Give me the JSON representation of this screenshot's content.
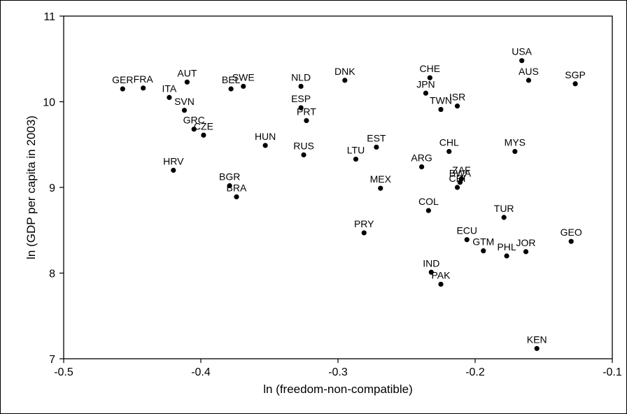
{
  "chart_data": {
    "type": "scatter",
    "xlabel": "ln (freedom-non-compatible)",
    "ylabel": "ln (GDP per capita in 2003)",
    "xlim": [
      -0.5,
      -0.1
    ],
    "ylim": [
      7,
      11
    ],
    "xticks": [
      "-0.5",
      "-0.4",
      "-0.3",
      "-0.2",
      "-0.1"
    ],
    "yticks": [
      "7",
      "8",
      "9",
      "10",
      "11"
    ],
    "grid": false,
    "points": [
      {
        "label": "GER",
        "x": -0.457,
        "y": 10.15
      },
      {
        "label": "FRA",
        "x": -0.442,
        "y": 10.16
      },
      {
        "label": "AUT",
        "x": -0.41,
        "y": 10.23
      },
      {
        "label": "ITA",
        "x": -0.423,
        "y": 10.05
      },
      {
        "label": "SVN",
        "x": -0.412,
        "y": 9.9
      },
      {
        "label": "GRC",
        "x": -0.405,
        "y": 9.68
      },
      {
        "label": "CZE",
        "x": -0.398,
        "y": 9.61
      },
      {
        "label": "HRV",
        "x": -0.42,
        "y": 9.2
      },
      {
        "label": "BEL",
        "x": -0.378,
        "y": 10.15
      },
      {
        "label": "SWE",
        "x": -0.369,
        "y": 10.18
      },
      {
        "label": "BGR",
        "x": -0.379,
        "y": 9.02
      },
      {
        "label": "BRA",
        "x": -0.374,
        "y": 8.89
      },
      {
        "label": "HUN",
        "x": -0.353,
        "y": 9.49
      },
      {
        "label": "NLD",
        "x": -0.327,
        "y": 10.18
      },
      {
        "label": "ESP",
        "x": -0.327,
        "y": 9.93
      },
      {
        "label": "PRT",
        "x": -0.323,
        "y": 9.78
      },
      {
        "label": "RUS",
        "x": -0.325,
        "y": 9.38
      },
      {
        "label": "DNK",
        "x": -0.295,
        "y": 10.25
      },
      {
        "label": "EST",
        "x": -0.272,
        "y": 9.47
      },
      {
        "label": "LTU",
        "x": -0.287,
        "y": 9.33
      },
      {
        "label": "MEX",
        "x": -0.269,
        "y": 8.99
      },
      {
        "label": "PRY",
        "x": -0.281,
        "y": 8.47
      },
      {
        "label": "CHE",
        "x": -0.233,
        "y": 10.28
      },
      {
        "label": "JPN",
        "x": -0.236,
        "y": 10.1
      },
      {
        "label": "TWN",
        "x": -0.225,
        "y": 9.91
      },
      {
        "label": "ISR",
        "x": -0.213,
        "y": 9.95
      },
      {
        "label": "ARG",
        "x": -0.239,
        "y": 9.24
      },
      {
        "label": "CHL",
        "x": -0.219,
        "y": 9.42
      },
      {
        "label": "ZAF",
        "x": -0.21,
        "y": 9.1
      },
      {
        "label": "CRI",
        "x": -0.213,
        "y": 9.0
      },
      {
        "label": "COL",
        "x": -0.234,
        "y": 8.73
      },
      {
        "label": "BWA",
        "x": -0.211,
        "y": 9.06
      },
      {
        "label": "ECU",
        "x": -0.206,
        "y": 8.39
      },
      {
        "label": "GTM",
        "x": -0.194,
        "y": 8.26
      },
      {
        "label": "IND",
        "x": -0.232,
        "y": 8.01
      },
      {
        "label": "PAK",
        "x": -0.225,
        "y": 7.87
      },
      {
        "label": "USA",
        "x": -0.166,
        "y": 10.48
      },
      {
        "label": "AUS",
        "x": -0.161,
        "y": 10.25
      },
      {
        "label": "MYS",
        "x": -0.171,
        "y": 9.42
      },
      {
        "label": "TUR",
        "x": -0.179,
        "y": 8.65
      },
      {
        "label": "PHL",
        "x": -0.177,
        "y": 8.2
      },
      {
        "label": "JOR",
        "x": -0.163,
        "y": 8.25
      },
      {
        "label": "SGP",
        "x": -0.127,
        "y": 10.21
      },
      {
        "label": "GEO",
        "x": -0.13,
        "y": 8.37
      },
      {
        "label": "KEN",
        "x": -0.155,
        "y": 7.12
      }
    ]
  }
}
